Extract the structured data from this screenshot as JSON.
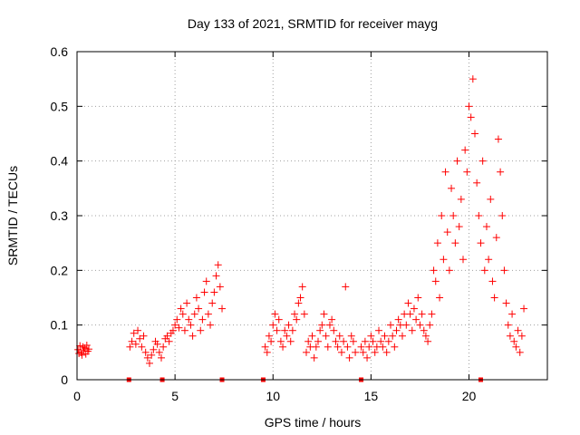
{
  "chart_data": {
    "type": "scatter",
    "title": "Day 133 of 2021, SRMTID for receiver mayg",
    "xlabel": "GPS time / hours",
    "ylabel": "SRMTID / TECUs",
    "xlim": [
      0,
      24
    ],
    "ylim": [
      0,
      0.6
    ],
    "xticks": [
      0,
      5,
      10,
      15,
      20
    ],
    "xtick_labels": [
      "0",
      "5",
      "10",
      "15",
      "20"
    ],
    "yticks": [
      0,
      0.1,
      0.2,
      0.3,
      0.4,
      0.5,
      0.6
    ],
    "ytick_labels": [
      "0",
      "0.1",
      "0.2",
      "0.3",
      "0.4",
      "0.5",
      "0.6"
    ],
    "grid": true,
    "marker": "plus",
    "color": "#ff0000",
    "series": [
      {
        "name": "SRMTID",
        "points": [
          [
            0.05,
            0.055
          ],
          [
            0.1,
            0.048
          ],
          [
            0.15,
            0.062
          ],
          [
            0.2,
            0.05
          ],
          [
            0.25,
            0.045
          ],
          [
            0.3,
            0.06
          ],
          [
            0.35,
            0.053
          ],
          [
            0.4,
            0.058
          ],
          [
            0.45,
            0.047
          ],
          [
            0.5,
            0.063
          ],
          [
            0.55,
            0.052
          ],
          [
            0.6,
            0.056
          ],
          [
            2.7,
            0.06
          ],
          [
            2.8,
            0.07
          ],
          [
            2.9,
            0.085
          ],
          [
            3.0,
            0.065
          ],
          [
            3.1,
            0.09
          ],
          [
            3.2,
            0.075
          ],
          [
            3.3,
            0.06
          ],
          [
            3.4,
            0.08
          ],
          [
            3.5,
            0.05
          ],
          [
            3.6,
            0.04
          ],
          [
            3.7,
            0.03
          ],
          [
            3.8,
            0.045
          ],
          [
            3.9,
            0.055
          ],
          [
            4.0,
            0.07
          ],
          [
            4.1,
            0.065
          ],
          [
            4.2,
            0.05
          ],
          [
            4.3,
            0.04
          ],
          [
            4.4,
            0.06
          ],
          [
            4.5,
            0.075
          ],
          [
            4.6,
            0.08
          ],
          [
            4.7,
            0.07
          ],
          [
            4.8,
            0.085
          ],
          [
            4.9,
            0.09
          ],
          [
            5.0,
            0.1
          ],
          [
            5.1,
            0.11
          ],
          [
            5.2,
            0.095
          ],
          [
            5.3,
            0.13
          ],
          [
            5.4,
            0.12
          ],
          [
            5.5,
            0.09
          ],
          [
            5.6,
            0.14
          ],
          [
            5.7,
            0.11
          ],
          [
            5.8,
            0.1
          ],
          [
            5.9,
            0.08
          ],
          [
            6.0,
            0.12
          ],
          [
            6.1,
            0.15
          ],
          [
            6.2,
            0.13
          ],
          [
            6.3,
            0.09
          ],
          [
            6.4,
            0.11
          ],
          [
            6.5,
            0.16
          ],
          [
            6.6,
            0.18
          ],
          [
            6.7,
            0.12
          ],
          [
            6.8,
            0.1
          ],
          [
            6.9,
            0.14
          ],
          [
            7.0,
            0.16
          ],
          [
            7.1,
            0.19
          ],
          [
            7.2,
            0.21
          ],
          [
            7.3,
            0.17
          ],
          [
            7.4,
            0.13
          ],
          [
            9.6,
            0.06
          ],
          [
            9.7,
            0.05
          ],
          [
            9.8,
            0.08
          ],
          [
            9.9,
            0.07
          ],
          [
            10.0,
            0.1
          ],
          [
            10.1,
            0.12
          ],
          [
            10.2,
            0.09
          ],
          [
            10.3,
            0.11
          ],
          [
            10.4,
            0.07
          ],
          [
            10.5,
            0.06
          ],
          [
            10.6,
            0.09
          ],
          [
            10.7,
            0.08
          ],
          [
            10.8,
            0.1
          ],
          [
            10.9,
            0.07
          ],
          [
            11.0,
            0.09
          ],
          [
            11.1,
            0.12
          ],
          [
            11.2,
            0.11
          ],
          [
            11.3,
            0.14
          ],
          [
            11.4,
            0.15
          ],
          [
            11.5,
            0.17
          ],
          [
            11.6,
            0.12
          ],
          [
            11.7,
            0.05
          ],
          [
            11.8,
            0.07
          ],
          [
            11.9,
            0.06
          ],
          [
            12.0,
            0.08
          ],
          [
            12.1,
            0.04
          ],
          [
            12.2,
            0.06
          ],
          [
            12.3,
            0.07
          ],
          [
            12.4,
            0.09
          ],
          [
            12.5,
            0.1
          ],
          [
            12.6,
            0.12
          ],
          [
            12.7,
            0.08
          ],
          [
            12.8,
            0.06
          ],
          [
            12.9,
            0.1
          ],
          [
            13.0,
            0.11
          ],
          [
            13.1,
            0.09
          ],
          [
            13.2,
            0.07
          ],
          [
            13.3,
            0.06
          ],
          [
            13.4,
            0.08
          ],
          [
            13.5,
            0.05
          ],
          [
            13.6,
            0.07
          ],
          [
            13.7,
            0.17
          ],
          [
            13.8,
            0.06
          ],
          [
            13.9,
            0.04
          ],
          [
            14.0,
            0.08
          ],
          [
            14.1,
            0.07
          ],
          [
            14.2,
            0.05
          ],
          [
            14.5,
            0.06
          ],
          [
            14.6,
            0.05
          ],
          [
            14.7,
            0.07
          ],
          [
            14.8,
            0.04
          ],
          [
            14.9,
            0.06
          ],
          [
            15.0,
            0.08
          ],
          [
            15.1,
            0.07
          ],
          [
            15.2,
            0.05
          ],
          [
            15.3,
            0.06
          ],
          [
            15.4,
            0.09
          ],
          [
            15.5,
            0.07
          ],
          [
            15.6,
            0.06
          ],
          [
            15.7,
            0.08
          ],
          [
            15.8,
            0.05
          ],
          [
            15.9,
            0.07
          ],
          [
            16.0,
            0.1
          ],
          [
            16.1,
            0.08
          ],
          [
            16.2,
            0.06
          ],
          [
            16.3,
            0.09
          ],
          [
            16.4,
            0.11
          ],
          [
            16.5,
            0.1
          ],
          [
            16.6,
            0.08
          ],
          [
            16.7,
            0.12
          ],
          [
            16.8,
            0.1
          ],
          [
            16.9,
            0.14
          ],
          [
            17.0,
            0.12
          ],
          [
            17.1,
            0.09
          ],
          [
            17.2,
            0.13
          ],
          [
            17.3,
            0.11
          ],
          [
            17.4,
            0.15
          ],
          [
            17.5,
            0.1
          ],
          [
            17.6,
            0.12
          ],
          [
            17.7,
            0.09
          ],
          [
            17.8,
            0.08
          ],
          [
            17.9,
            0.07
          ],
          [
            18.0,
            0.1
          ],
          [
            18.1,
            0.12
          ],
          [
            18.2,
            0.2
          ],
          [
            18.3,
            0.18
          ],
          [
            18.4,
            0.25
          ],
          [
            18.5,
            0.15
          ],
          [
            18.6,
            0.3
          ],
          [
            18.7,
            0.22
          ],
          [
            18.8,
            0.38
          ],
          [
            18.9,
            0.27
          ],
          [
            19.0,
            0.2
          ],
          [
            19.1,
            0.35
          ],
          [
            19.2,
            0.3
          ],
          [
            19.3,
            0.25
          ],
          [
            19.4,
            0.4
          ],
          [
            19.5,
            0.28
          ],
          [
            19.6,
            0.33
          ],
          [
            19.7,
            0.22
          ],
          [
            19.8,
            0.42
          ],
          [
            19.9,
            0.38
          ],
          [
            20.0,
            0.5
          ],
          [
            20.1,
            0.48
          ],
          [
            20.2,
            0.55
          ],
          [
            20.3,
            0.45
          ],
          [
            20.4,
            0.36
          ],
          [
            20.5,
            0.3
          ],
          [
            20.6,
            0.25
          ],
          [
            20.7,
            0.4
          ],
          [
            20.8,
            0.2
          ],
          [
            20.9,
            0.28
          ],
          [
            21.0,
            0.22
          ],
          [
            21.1,
            0.33
          ],
          [
            21.2,
            0.18
          ],
          [
            21.3,
            0.15
          ],
          [
            21.4,
            0.26
          ],
          [
            21.5,
            0.44
          ],
          [
            21.6,
            0.38
          ],
          [
            21.7,
            0.3
          ],
          [
            21.8,
            0.2
          ],
          [
            21.9,
            0.14
          ],
          [
            22.0,
            0.1
          ],
          [
            22.1,
            0.08
          ],
          [
            22.2,
            0.12
          ],
          [
            22.3,
            0.07
          ],
          [
            22.4,
            0.06
          ],
          [
            22.5,
            0.09
          ],
          [
            22.6,
            0.05
          ],
          [
            22.7,
            0.08
          ],
          [
            22.8,
            0.13
          ]
        ]
      }
    ],
    "gap_markers_x": [
      2.65,
      4.35,
      7.4,
      9.5,
      14.5,
      20.6
    ]
  }
}
